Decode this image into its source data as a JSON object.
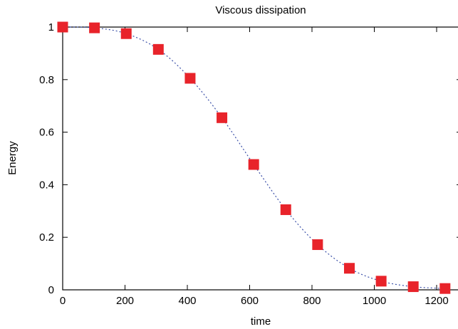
{
  "chart_data": {
    "type": "line",
    "title": "Viscous dissipation",
    "xlabel": "time",
    "ylabel": "Energy",
    "xlim": [
      0,
      1280
    ],
    "ylim": [
      0,
      1
    ],
    "x_ticks": [
      0,
      200,
      400,
      600,
      800,
      1000,
      1200
    ],
    "y_ticks": [
      0,
      0.2,
      0.4,
      0.6,
      0.8,
      1
    ],
    "x_tick_labels": [
      "0",
      "200",
      "400",
      "600",
      "800",
      "1000",
      "1200"
    ],
    "y_tick_labels": [
      "0",
      "0.2",
      "0.4",
      "0.6",
      "0.8",
      "1"
    ],
    "grid": false,
    "series": [
      {
        "marker": "square",
        "line_style": "dotted",
        "marker_color": "#e8232a",
        "line_color": "#3a4fa8",
        "x": [
          0,
          102,
          204,
          307,
          409,
          511,
          613,
          716,
          818,
          920,
          1022,
          1125,
          1227
        ],
        "y": [
          1.0,
          0.997,
          0.975,
          0.915,
          0.805,
          0.655,
          0.477,
          0.305,
          0.172,
          0.082,
          0.033,
          0.012,
          0.005
        ]
      }
    ]
  }
}
